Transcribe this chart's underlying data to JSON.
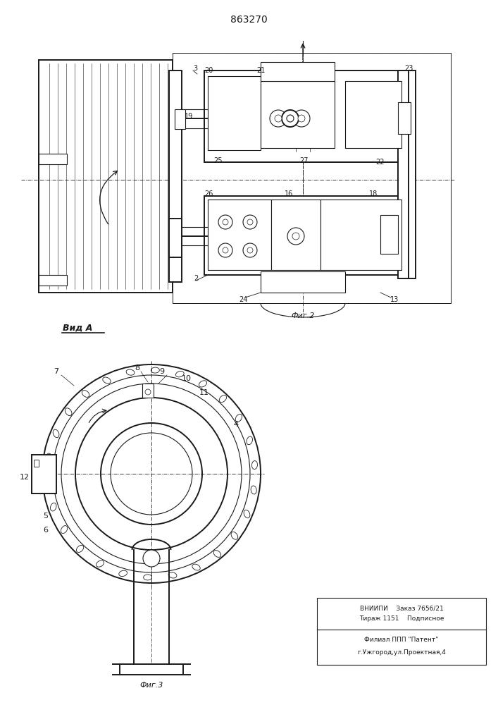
{
  "title": "863270",
  "fig_width": 7.07,
  "fig_height": 10.0,
  "bg_color": "#ffffff",
  "line_color": "#1a1a1a",
  "bottom_text_line1": "ВНИИПИ    Заказ 7656/21",
  "bottom_text_line2": "Тираж 1151    Подписное",
  "bottom_text_line3": "Филиал ППП \"Патент\"",
  "bottom_text_line4": "г.Ужгород,ул.Проектная,4",
  "fig2_label": "Фиг.2",
  "fig3_label": "Фиг.3",
  "vida_label": "Вид А"
}
